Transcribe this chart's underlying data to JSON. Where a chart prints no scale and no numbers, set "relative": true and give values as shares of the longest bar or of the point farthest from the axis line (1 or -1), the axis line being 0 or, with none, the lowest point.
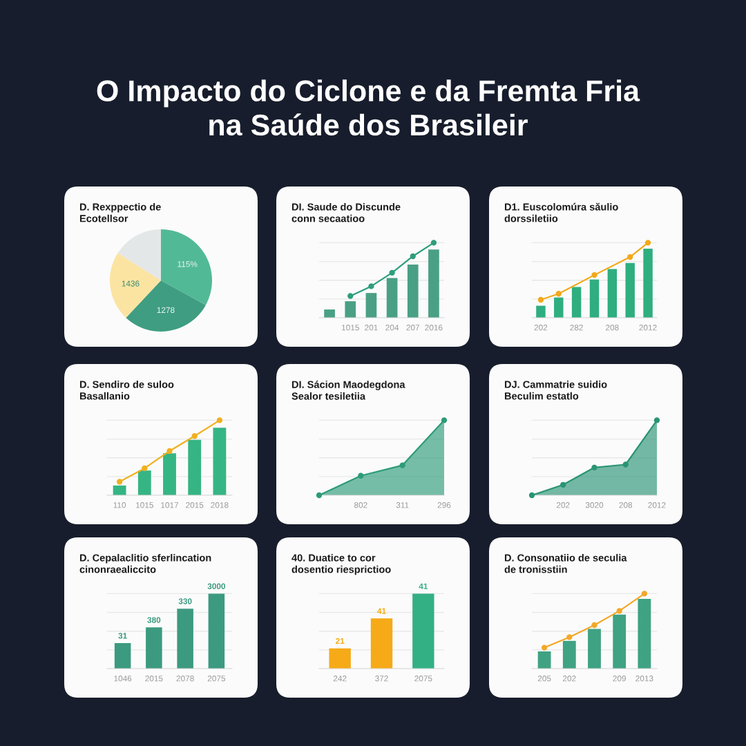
{
  "chart_data": [
    {
      "type": "other",
      "title": "O Impacto do Ciclone e da Fremta Fria\nna Saúde dos Brasileir"
    },
    {
      "type": "pie",
      "title": "D. Rexppectio de\nEcotellsor",
      "categories": [
        "115%",
        "1278",
        "1436",
        null
      ],
      "values": [
        33,
        29,
        22,
        16
      ],
      "colors": [
        "#52b996",
        "#3f9d82",
        "#fbe4a2",
        "#e4e7e7"
      ]
    },
    {
      "type": "bar",
      "title": "DI. Saude do Discunde\nconn secaatioo",
      "relative": true,
      "categories": [
        null,
        "1015",
        "201",
        "204",
        "207",
        "2016"
      ],
      "series": [
        {
          "color": "#4aa085",
          "values": [
            0.11,
            0.22,
            0.33,
            0.53,
            0.71,
            0.91
          ]
        },
        {
          "type": "line",
          "color": "#2e9e7c",
          "values": [
            null,
            0.29,
            0.42,
            0.6,
            0.82,
            1
          ]
        }
      ],
      "grid": "y",
      "marker": "circle"
    },
    {
      "type": "bar",
      "title": "D1. Euscolomúra săulio\ndorssiletiio",
      "relative": true,
      "categories": [
        "202",
        null,
        "282",
        null,
        "208",
        null,
        "2012"
      ],
      "series": [
        {
          "color": "#2fae80",
          "values": [
            0.16,
            0.27,
            0.41,
            0.51,
            0.65,
            0.73,
            0.92
          ]
        },
        {
          "type": "line",
          "color": "#f2a91a",
          "values": [
            0.24,
            0.32,
            null,
            0.57,
            null,
            0.81,
            1
          ]
        }
      ],
      "grid": "y",
      "marker": "circle"
    },
    {
      "type": "bar",
      "title": "D. Sendiro de suloo\nBasallanio",
      "relative": true,
      "categories": [
        "110",
        "1015",
        "1017",
        "2015",
        "2018"
      ],
      "series": [
        {
          "color": "#36b584",
          "values": [
            0.13,
            0.33,
            0.56,
            0.74,
            0.9
          ]
        },
        {
          "type": "line",
          "color": "#f0b020",
          "values": [
            0.18,
            0.36,
            0.59,
            0.79,
            1
          ]
        }
      ],
      "grid": "y",
      "marker": "circle"
    },
    {
      "type": "area",
      "title": "DI. Sácion Maodegdona\nSealor tesiletiia",
      "relative": true,
      "categories": [
        null,
        "802",
        "311",
        "296"
      ],
      "series": [
        {
          "color": "#2d9b78",
          "values": [
            0,
            0.26,
            0.4,
            1
          ]
        }
      ],
      "grid": "y",
      "marker": "circle"
    },
    {
      "type": "area",
      "title": "DJ. Cammatrie suidio\nBeculim estatlo",
      "relative": true,
      "categories": [
        null,
        "202",
        "3020",
        "208",
        "2012"
      ],
      "series": [
        {
          "color": "#2a9474",
          "values": [
            0,
            0.14,
            0.37,
            0.41,
            1
          ]
        }
      ],
      "grid": "y",
      "marker": "circle"
    },
    {
      "type": "bar",
      "title": "D. Cepalaclitio sferlincation\ncinonraealiccito",
      "relative": true,
      "categories": [
        "1046",
        "2015",
        "2078",
        "2075"
      ],
      "series": [
        {
          "color": "#3c9a80",
          "values": [
            0.34,
            0.55,
            0.8,
            1
          ]
        }
      ],
      "annotations": [
        {
          "text": "31",
          "x": "1046",
          "y": 0.34
        },
        {
          "text": "380",
          "x": "2015",
          "y": 0.55
        },
        {
          "text": "330",
          "x": "2078",
          "y": 0.8
        },
        {
          "text": "3000",
          "x": "2075",
          "y": 1
        }
      ],
      "grid": "y"
    },
    {
      "type": "bar",
      "title": "40. Duatice to cor\ndosentio riesprictioo",
      "relative": true,
      "categories": [
        "242",
        "372",
        "2075"
      ],
      "series": [
        {
          "colors": [
            "#f6aa17",
            "#f6aa17",
            "#33b084"
          ],
          "values": [
            0.27,
            0.67,
            1
          ]
        }
      ],
      "annotations": [
        {
          "text": "21",
          "x": "242",
          "y": 0.27
        },
        {
          "text": "41",
          "x": "372",
          "y": 0.67
        },
        {
          "text": "41",
          "x": "2075",
          "y": 1
        }
      ],
      "grid": "y"
    },
    {
      "type": "bar",
      "title": "D. Consonatiio de seculia\nde tronisstiin",
      "relative": true,
      "categories": [
        "205",
        "202",
        null,
        "209",
        "2013"
      ],
      "series": [
        {
          "color": "#3fa283",
          "values": [
            0.23,
            0.37,
            0.53,
            0.72,
            0.93
          ]
        },
        {
          "type": "line",
          "color": "#f3a82a",
          "values": [
            0.28,
            0.42,
            0.58,
            0.77,
            1
          ]
        }
      ],
      "grid": "y",
      "marker": "circle"
    }
  ]
}
